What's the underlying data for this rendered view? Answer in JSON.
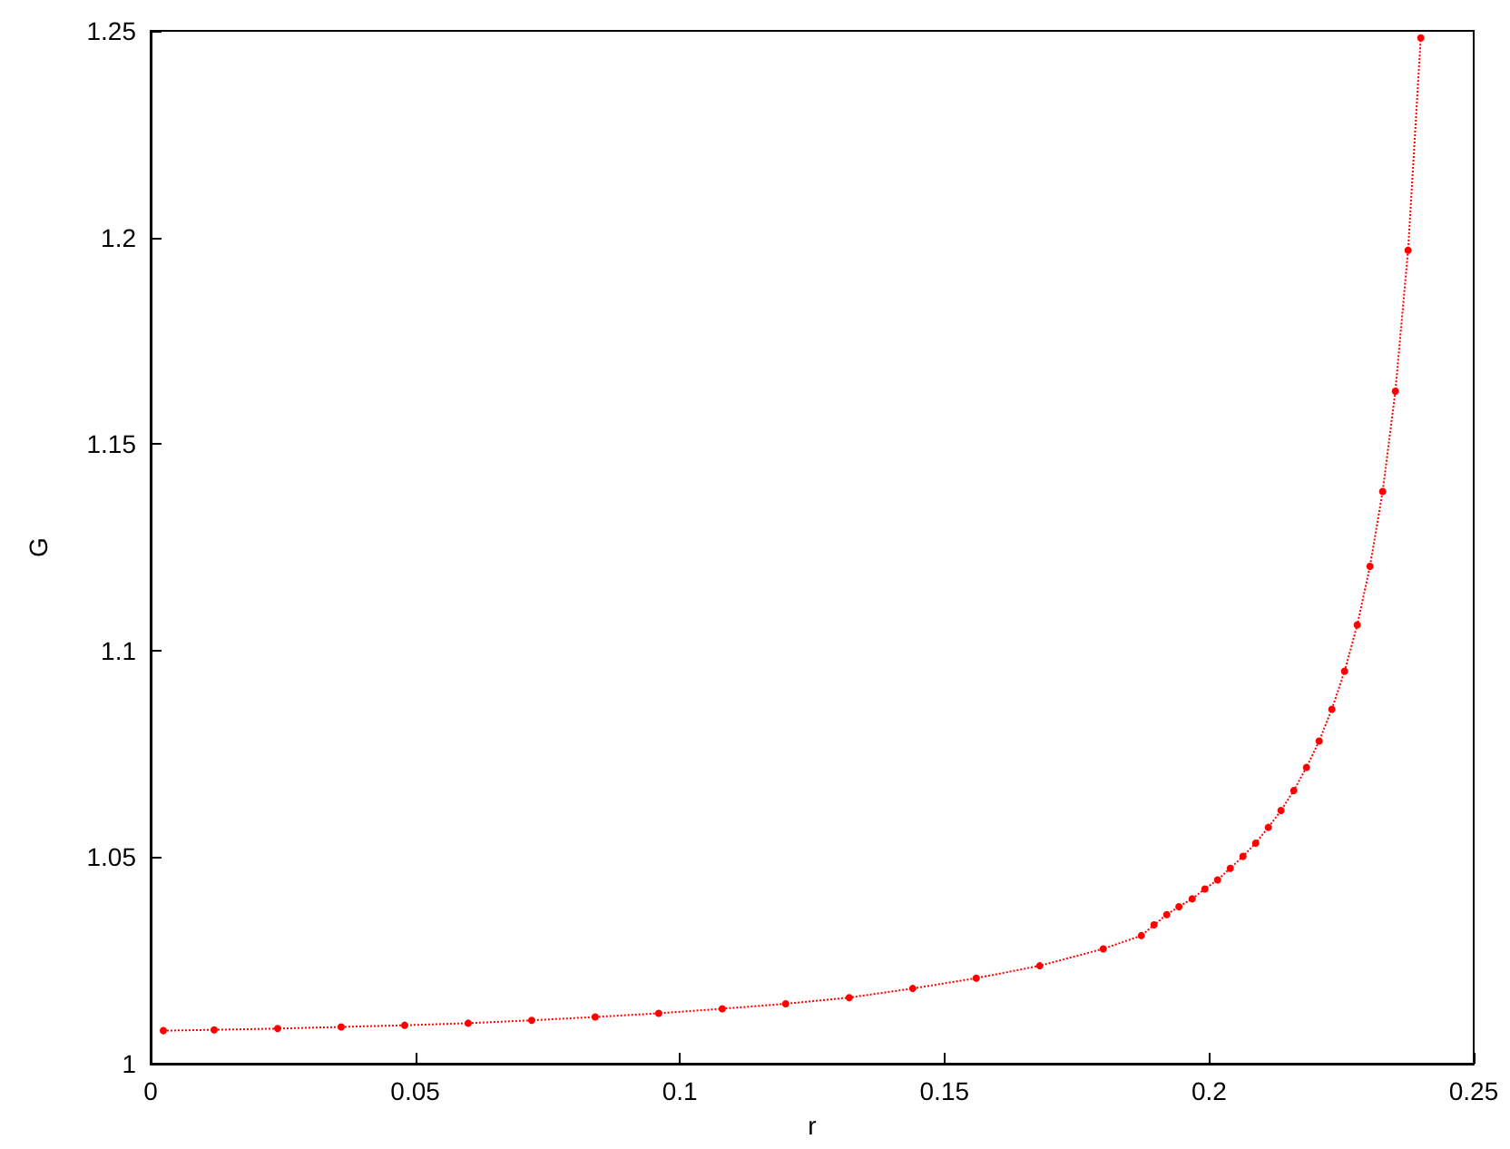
{
  "chart_data": {
    "type": "line",
    "xlabel": "r",
    "ylabel": "G",
    "xlim": [
      0,
      0.25
    ],
    "ylim": [
      1,
      1.25
    ],
    "xticks": [
      0,
      0.05,
      0.1,
      0.15,
      0.2,
      0.25
    ],
    "yticks": [
      1,
      1.05,
      1.1,
      1.15,
      1.2,
      1.25
    ],
    "grid": false,
    "marker": "circle",
    "line_style": "dotted",
    "series": [
      {
        "color": "#ff0000",
        "x": [
          0.0024,
          0.012,
          0.024,
          0.036,
          0.048,
          0.06,
          0.072,
          0.084,
          0.096,
          0.108,
          0.12,
          0.132,
          0.144,
          0.156,
          0.168,
          0.18,
          0.1872,
          0.1896,
          0.192,
          0.1943,
          0.1968,
          0.1992,
          0.2016,
          0.204,
          0.2064,
          0.2088,
          0.2112,
          0.2136,
          0.216,
          0.2184,
          0.2208,
          0.2232,
          0.2256,
          0.228,
          0.2304,
          0.2328,
          0.2352,
          0.2376,
          0.24
        ],
        "values": [
          1.008,
          1.0082,
          1.0085,
          1.0089,
          1.0093,
          1.0098,
          1.0105,
          1.0113,
          1.0122,
          1.0133,
          1.0145,
          1.016,
          1.0182,
          1.0207,
          1.0237,
          1.0278,
          1.031,
          1.0336,
          1.0361,
          1.038,
          1.0399,
          1.0423,
          1.0445,
          1.0473,
          1.0502,
          1.0534,
          1.0572,
          1.0613,
          1.0661,
          1.0717,
          1.0781,
          1.0858,
          1.095,
          1.1062,
          1.1204,
          1.1385,
          1.1628,
          1.1969,
          1.2483
        ]
      }
    ]
  }
}
